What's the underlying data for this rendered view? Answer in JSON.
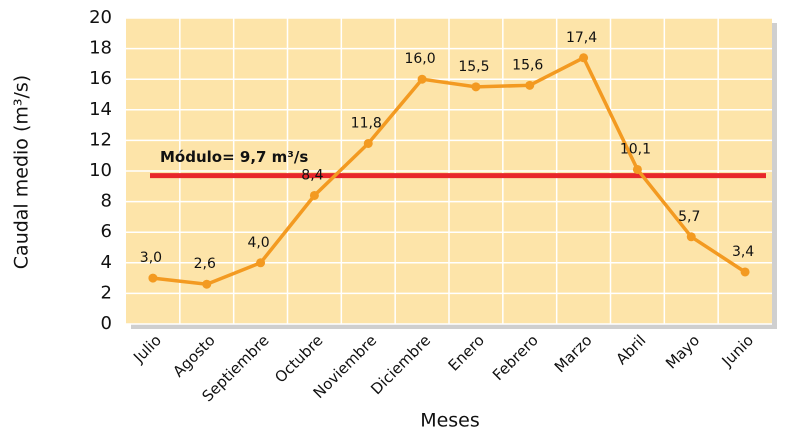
{
  "chart_data": {
    "type": "line",
    "x_label": "Meses",
    "y_label": "Caudal medio (m³/s)",
    "categories": [
      "Julio",
      "Agosto",
      "Septiembre",
      "Octubre",
      "Noviembre",
      "Diciembre",
      "Enero",
      "Febrero",
      "Marzo",
      "Abril",
      "Mayo",
      "Junio"
    ],
    "values": [
      3.0,
      2.6,
      4.0,
      8.4,
      11.8,
      16.0,
      15.5,
      15.6,
      17.4,
      10.1,
      5.7,
      3.4
    ],
    "value_labels": [
      "3,0",
      "2,6",
      "4,0",
      "8,4",
      "11,8",
      "16,0",
      "15,5",
      "15,6",
      "17,4",
      "10,1",
      "5,7",
      "3,4"
    ],
    "color": "#f39a21",
    "ylim": [
      0,
      20
    ],
    "yticks": [
      0,
      2,
      4,
      6,
      8,
      10,
      12,
      14,
      16,
      18,
      20
    ],
    "grid": true,
    "reference_line": {
      "value": 9.7,
      "label": "Módulo= 9,7 m³/s",
      "color": "#e8262a"
    }
  }
}
